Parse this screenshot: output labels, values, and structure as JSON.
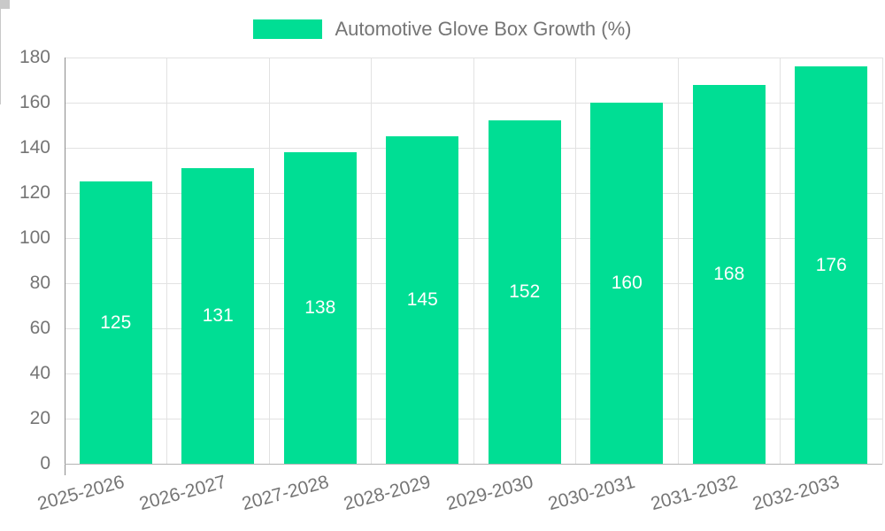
{
  "chart_data": {
    "type": "bar",
    "title": "Automotive Glove Box Growth (%)",
    "categories": [
      "2025-2026",
      "2026-2027",
      "2027-2028",
      "2028-2029",
      "2029-2030",
      "2030-2031",
      "2031-2032",
      "2032-2033"
    ],
    "series": [
      {
        "name": "Automotive Glove Box Growth (%)",
        "values": [
          125,
          131,
          138,
          145,
          152,
          160,
          168,
          176
        ],
        "color": "#00DE94"
      }
    ],
    "xlabel": "",
    "ylabel": "",
    "ylim": [
      0,
      180
    ],
    "yticks": [
      0,
      20,
      40,
      60,
      80,
      100,
      120,
      140,
      160,
      180
    ],
    "grid": true,
    "legend_position": "top",
    "data_labels": {
      "position": "inside-center",
      "color": "#ffffff"
    },
    "x_tick_rotation_deg": -15
  },
  "colors": {
    "bar": "#00DE94",
    "gridline": "#e2e2e2",
    "axis_y": "#8c8c8c",
    "axis_x": "#b3b3b3",
    "tick": "#c9c9c9",
    "label_text": "#757575",
    "data_label_text": "#ffffff",
    "background": "#ffffff"
  }
}
